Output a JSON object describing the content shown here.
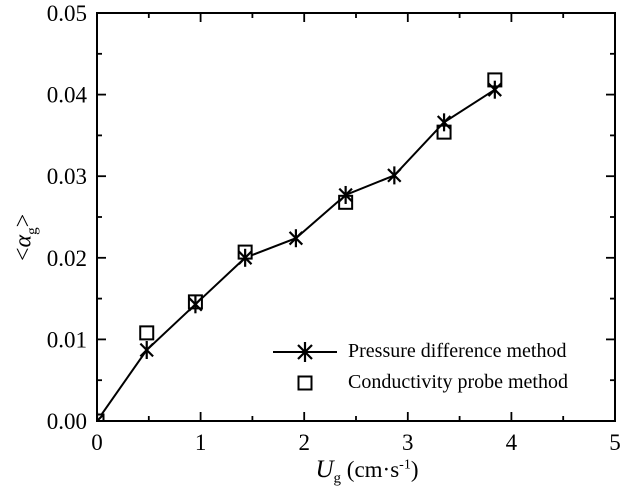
{
  "chart_data": {
    "type": "line",
    "title": "",
    "xlabel": "Ug (cm·s-1)",
    "ylabel": "<αg>",
    "xlim": [
      0,
      5
    ],
    "ylim": [
      0,
      0.05
    ],
    "grid": false,
    "x_major_ticks": [
      "0",
      "1",
      "2",
      "3",
      "4",
      "5"
    ],
    "y_major_ticks": [
      "0.00",
      "0.01",
      "0.02",
      "0.03",
      "0.04",
      "0.05"
    ],
    "x_minor_step": 0.5,
    "y_minor_step": 0.005,
    "legend_position": "inside lower-right",
    "series": [
      {
        "name": "Pressure difference method",
        "marker": "star",
        "connected": true,
        "points": [
          [
            0,
            0
          ],
          [
            0.48,
            0.0087
          ],
          [
            0.95,
            0.0143
          ],
          [
            1.43,
            0.02
          ],
          [
            1.92,
            0.0224
          ],
          [
            2.4,
            0.0277
          ],
          [
            2.87,
            0.0301
          ],
          [
            3.35,
            0.0366
          ],
          [
            3.84,
            0.0406
          ]
        ]
      },
      {
        "name": "Conductivity probe method",
        "marker": "square",
        "connected": false,
        "points": [
          [
            0,
            0
          ],
          [
            0.48,
            0.0108
          ],
          [
            0.95,
            0.0146
          ],
          [
            1.43,
            0.0207
          ],
          [
            2.4,
            0.0268
          ],
          [
            3.35,
            0.0354
          ],
          [
            3.84,
            0.0418
          ]
        ]
      }
    ]
  },
  "axes": {
    "x_label": {
      "var": "U",
      "sub": "g",
      "unit_open": " (cm·s",
      "unit_sup": "-1",
      "unit_close": ")"
    },
    "y_label": {
      "open": "<",
      "var": "α",
      "sub": "g",
      "close": ">"
    }
  },
  "legend": {
    "entries": [
      {
        "label": "Pressure difference method",
        "marker": "star-line"
      },
      {
        "label": "Conductivity probe method",
        "marker": "square"
      }
    ]
  },
  "colors": {
    "stroke": "#000000",
    "text": "#000000",
    "background": "#ffffff"
  }
}
